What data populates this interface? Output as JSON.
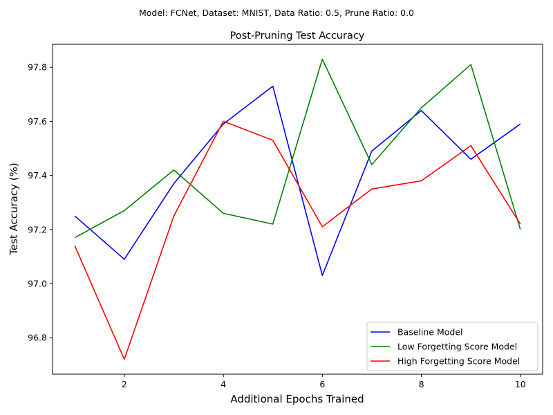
{
  "suptitle": "Model: FCNet, Dataset: MNIST, Data Ratio: 0.5, Prune Ratio: 0.0",
  "chart_data": {
    "type": "line",
    "title": "Post-Pruning Test Accuracy",
    "xlabel": "Additional Epochs Trained",
    "ylabel": "Test Accuracy (%)",
    "x": [
      1,
      2,
      3,
      4,
      5,
      6,
      7,
      8,
      9,
      10
    ],
    "xlim": [
      0.55,
      10.45
    ],
    "ylim": [
      96.665,
      97.885
    ],
    "xticks": [
      2,
      4,
      6,
      8,
      10
    ],
    "yticks": [
      96.8,
      97.0,
      97.2,
      97.4,
      97.6,
      97.8
    ],
    "ytick_labels": [
      "96.8",
      "97.0",
      "97.2",
      "97.4",
      "97.6",
      "97.8"
    ],
    "grid": false,
    "legend_position": "lower-right",
    "series": [
      {
        "name": "Baseline Model",
        "color": "#0000ff",
        "values": [
          97.25,
          97.09,
          97.37,
          97.59,
          97.73,
          97.03,
          97.49,
          97.64,
          97.46,
          97.59
        ]
      },
      {
        "name": "Low Forgetting Score Model",
        "color": "#008000",
        "values": [
          97.17,
          97.27,
          97.42,
          97.26,
          97.22,
          97.83,
          97.44,
          97.65,
          97.81,
          97.2
        ]
      },
      {
        "name": "High Forgetting Score Model",
        "color": "#ff0000",
        "values": [
          97.14,
          96.72,
          97.25,
          97.6,
          97.53,
          97.21,
          97.35,
          97.38,
          97.51,
          97.22
        ]
      }
    ]
  }
}
